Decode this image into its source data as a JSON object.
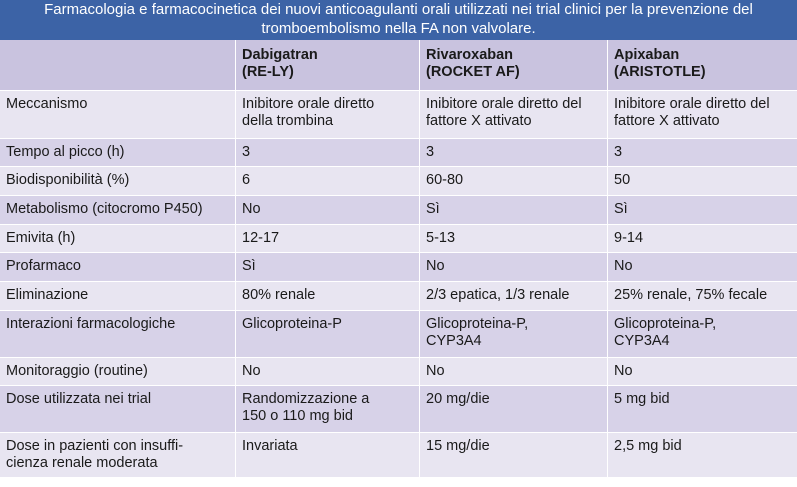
{
  "caption": {
    "line1": "Farmacologia e farmacocinetica dei nuovi anticoagulanti orali utilizzati nei trial clinici per la prevenzione del",
    "line2": "tromboembolismo nella FA non valvolare."
  },
  "columns": [
    {
      "line1": "",
      "line2": ""
    },
    {
      "line1": "Dabigatran",
      "line2": "(RE-LY)"
    },
    {
      "line1": "Rivaroxaban",
      "line2": "(ROCKET AF)"
    },
    {
      "line1": "Apixaban",
      "line2": "(ARISTOTLE)"
    }
  ],
  "rows": [
    {
      "label": [
        "Meccanismo",
        ""
      ],
      "dabigatran": [
        "Inibitore orale diretto",
        "della trombina"
      ],
      "rivaroxaban": [
        "Inibitore orale diretto del",
        "fattore X attivato"
      ],
      "apixaban": [
        "Inibitore orale diretto del",
        "fattore X attivato"
      ]
    },
    {
      "label": [
        "Tempo al picco (h)",
        ""
      ],
      "dabigatran": [
        "3",
        ""
      ],
      "rivaroxaban": [
        "3",
        ""
      ],
      "apixaban": [
        "3",
        ""
      ]
    },
    {
      "label": [
        "Biodisponibilità (%)",
        ""
      ],
      "dabigatran": [
        "6",
        ""
      ],
      "rivaroxaban": [
        "60-80",
        ""
      ],
      "apixaban": [
        "50",
        ""
      ]
    },
    {
      "label": [
        "Metabolismo (citocromo P450)",
        ""
      ],
      "dabigatran": [
        "No",
        ""
      ],
      "rivaroxaban": [
        "Sì",
        ""
      ],
      "apixaban": [
        "Sì",
        ""
      ]
    },
    {
      "label": [
        "Emivita (h)",
        ""
      ],
      "dabigatran": [
        "12-17",
        ""
      ],
      "rivaroxaban": [
        "5-13",
        ""
      ],
      "apixaban": [
        "9-14",
        ""
      ]
    },
    {
      "label": [
        "Profarmaco",
        ""
      ],
      "dabigatran": [
        "Sì",
        ""
      ],
      "rivaroxaban": [
        "No",
        ""
      ],
      "apixaban": [
        "No",
        ""
      ]
    },
    {
      "label": [
        "Eliminazione",
        ""
      ],
      "dabigatran": [
        "80% renale",
        ""
      ],
      "rivaroxaban": [
        "2/3 epatica, 1/3 renale",
        ""
      ],
      "apixaban": [
        "25% renale, 75% fecale",
        ""
      ]
    },
    {
      "label": [
        "Interazioni farmacologiche",
        ""
      ],
      "dabigatran": [
        "Glicoproteina-P",
        ""
      ],
      "rivaroxaban": [
        "Glicoproteina-P,",
        "CYP3A4"
      ],
      "apixaban": [
        "Glicoproteina-P,",
        "CYP3A4"
      ]
    },
    {
      "label": [
        "Monitoraggio (routine)",
        ""
      ],
      "dabigatran": [
        "No",
        ""
      ],
      "rivaroxaban": [
        "No",
        ""
      ],
      "apixaban": [
        "No",
        ""
      ]
    },
    {
      "label": [
        "Dose utilizzata nei trial",
        ""
      ],
      "dabigatran": [
        "Randomizzazione a",
        "150 o 110 mg bid"
      ],
      "rivaroxaban": [
        "20 mg/die",
        ""
      ],
      "apixaban": [
        "5 mg bid",
        ""
      ]
    },
    {
      "label": [
        "Dose in pazienti con insuffi-",
        "cienza renale moderata"
      ],
      "dabigatran": [
        "Invariata",
        ""
      ],
      "rivaroxaban": [
        "15 mg/die",
        ""
      ],
      "apixaban": [
        "2,5 mg bid",
        ""
      ]
    }
  ]
}
